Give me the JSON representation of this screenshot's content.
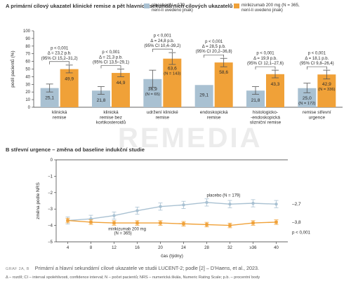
{
  "panel_a": {
    "title": "A  primární cílový ukazatel klinické remise a pět hlavních sekundárních cílových ukazatelů",
    "legend_placebo_line1": "placebo (N = 179,",
    "legend_placebo_line2": "není-li uvedeno jinak)",
    "legend_miri_line1": "mirikizumab 200 mg (N = 365,",
    "legend_miri_line2": "není-li uvedeno jinak)"
  },
  "panel_b": {
    "title": "B  střevní urgence – změna od baseline indukční studie"
  },
  "watermark": "REMEDIA",
  "footer": {
    "label": "GRAF 2A, B",
    "caption": "Primární a hlavní sekundární cílové ukazatele ve studii LUCENT-2; podle [2] – D’Haens, et al., 2023.",
    "abbreviations": "Δ – rozdíl; CI – interval spolehlivosti, confidence interval; N – počet pacientů; NRS – numerická škála, Numeric Rating Scale; p.b. – procentní body"
  },
  "chart_data": [
    {
      "type": "bar",
      "ylabel": "podíl pacientů (%)",
      "ylim": [
        0,
        100
      ],
      "yticks": [
        0,
        10,
        20,
        30,
        40,
        50,
        60,
        70,
        80,
        90,
        100
      ],
      "colors": {
        "placebo": "#a9c1d2",
        "mirikizumab": "#f0a138"
      },
      "categories": [
        {
          "label": [
            "klinická",
            "remise"
          ],
          "placebo": 25.1,
          "placebo_err": [
            20.0,
            30.4
          ],
          "placebo_label": [
            "25,1"
          ],
          "miri": 49.9,
          "miri_err": [
            45.0,
            55.2
          ],
          "miri_label": [
            "49,9"
          ],
          "annotation": [
            "p < 0,001",
            "Δ = 23,2 p.b.",
            "(95% CI 15,2–31,2)"
          ]
        },
        {
          "label": [
            "klinická",
            "remise bez",
            "kortikosteroidů"
          ],
          "placebo": 21.8,
          "placebo_err": [
            17.0,
            27.0
          ],
          "placebo_label": [
            "21,8"
          ],
          "miri": 44.9,
          "miri_err": [
            40.0,
            50.0
          ],
          "miri_label": [
            "44,9"
          ],
          "annotation": [
            "p < 0,001",
            "Δ = 21,3 p.b.",
            "(95% CI 13,5–29,1)"
          ]
        },
        {
          "label": [
            "udržení klinické",
            "remise"
          ],
          "placebo": 36.9,
          "placebo_err": [
            26.0,
            48.5
          ],
          "placebo_label": [
            "36,9",
            "(N = 65)"
          ],
          "miri": 63.6,
          "miri_err": [
            56.0,
            71.5
          ],
          "miri_label": [
            "63,6",
            "(N = 143)"
          ],
          "annotation": [
            "p < 0,001",
            "Δ = 24,8 p.b.",
            "(95% CI 10,4–39,2)"
          ]
        },
        {
          "label": [
            "endoskopická",
            "remise"
          ],
          "placebo": 29.1,
          "placebo_err": [
            null,
            null
          ],
          "placebo_label": [
            "29,1"
          ],
          "miri": 58.6,
          "miri_err": [
            53.0,
            64.0
          ],
          "miri_label": [
            "58,6"
          ],
          "annotation": [
            "p < 0,001",
            "Δ = 28,5 p.b.",
            "(95% CI 20,2–36,8)"
          ]
        },
        {
          "label": [
            "histologicko-",
            "-endoskopická",
            "slizniční remise"
          ],
          "placebo": 21.8,
          "placebo_err": [
            17.0,
            27.0
          ],
          "placebo_label": [
            "21,8"
          ],
          "miri": 43.3,
          "miri_err": [
            38.5,
            48.5
          ],
          "miri_label": [
            "43,3"
          ],
          "annotation": [
            "p < 0,001",
            "Δ = 19,9 p.b.",
            "(95% CI 12,1–27,6)"
          ]
        },
        {
          "label": [
            "remise střevní",
            "urgence"
          ],
          "placebo": 25.0,
          "placebo_err": [
            19.0,
            31.5
          ],
          "placebo_label": [
            "25,0",
            "(N = 172)"
          ],
          "miri": 42.9,
          "miri_err": [
            37.0,
            48.5
          ],
          "miri_label": [
            "42,9",
            "(N = 336)"
          ],
          "annotation": [
            "p < 0,001",
            "Δ = 18,1 p.b.",
            "(95% CI 9,8–26,4)"
          ]
        }
      ]
    },
    {
      "type": "line",
      "xlabel": "čas (týdny)",
      "ylabel": "změna podle NRS",
      "x": [
        4,
        8,
        12,
        16,
        20,
        24,
        28,
        32,
        36,
        40
      ],
      "xticklabels": [
        "4",
        "8",
        "12",
        "16",
        "20",
        "24",
        "28",
        "32",
        "≥36",
        "40"
      ],
      "ylim": [
        -5,
        0
      ],
      "yticks": [
        0,
        -1,
        -2,
        -3,
        -4,
        -5
      ],
      "yticklabels": [
        "0",
        "−1",
        "−2",
        "−3",
        "−4",
        "−5"
      ],
      "series": [
        {
          "name": "placebo (N = 179)",
          "color": "#a9c1d2",
          "values": [
            -3.7,
            -3.6,
            -3.4,
            -3.1,
            -2.85,
            -2.75,
            -2.6,
            -2.7,
            -2.65,
            -2.7
          ],
          "err": 0.22,
          "end_label": "–2,7"
        },
        {
          "name": "mirikizumab 200 mg (N = 365)",
          "color": "#f0a138",
          "values": [
            -3.7,
            -3.8,
            -3.85,
            -3.85,
            -3.85,
            -3.9,
            -3.95,
            -4.0,
            -3.85,
            -3.8
          ],
          "err": 0.14,
          "end_label": "–3,8"
        }
      ],
      "annotation": "p < 0,001"
    }
  ]
}
